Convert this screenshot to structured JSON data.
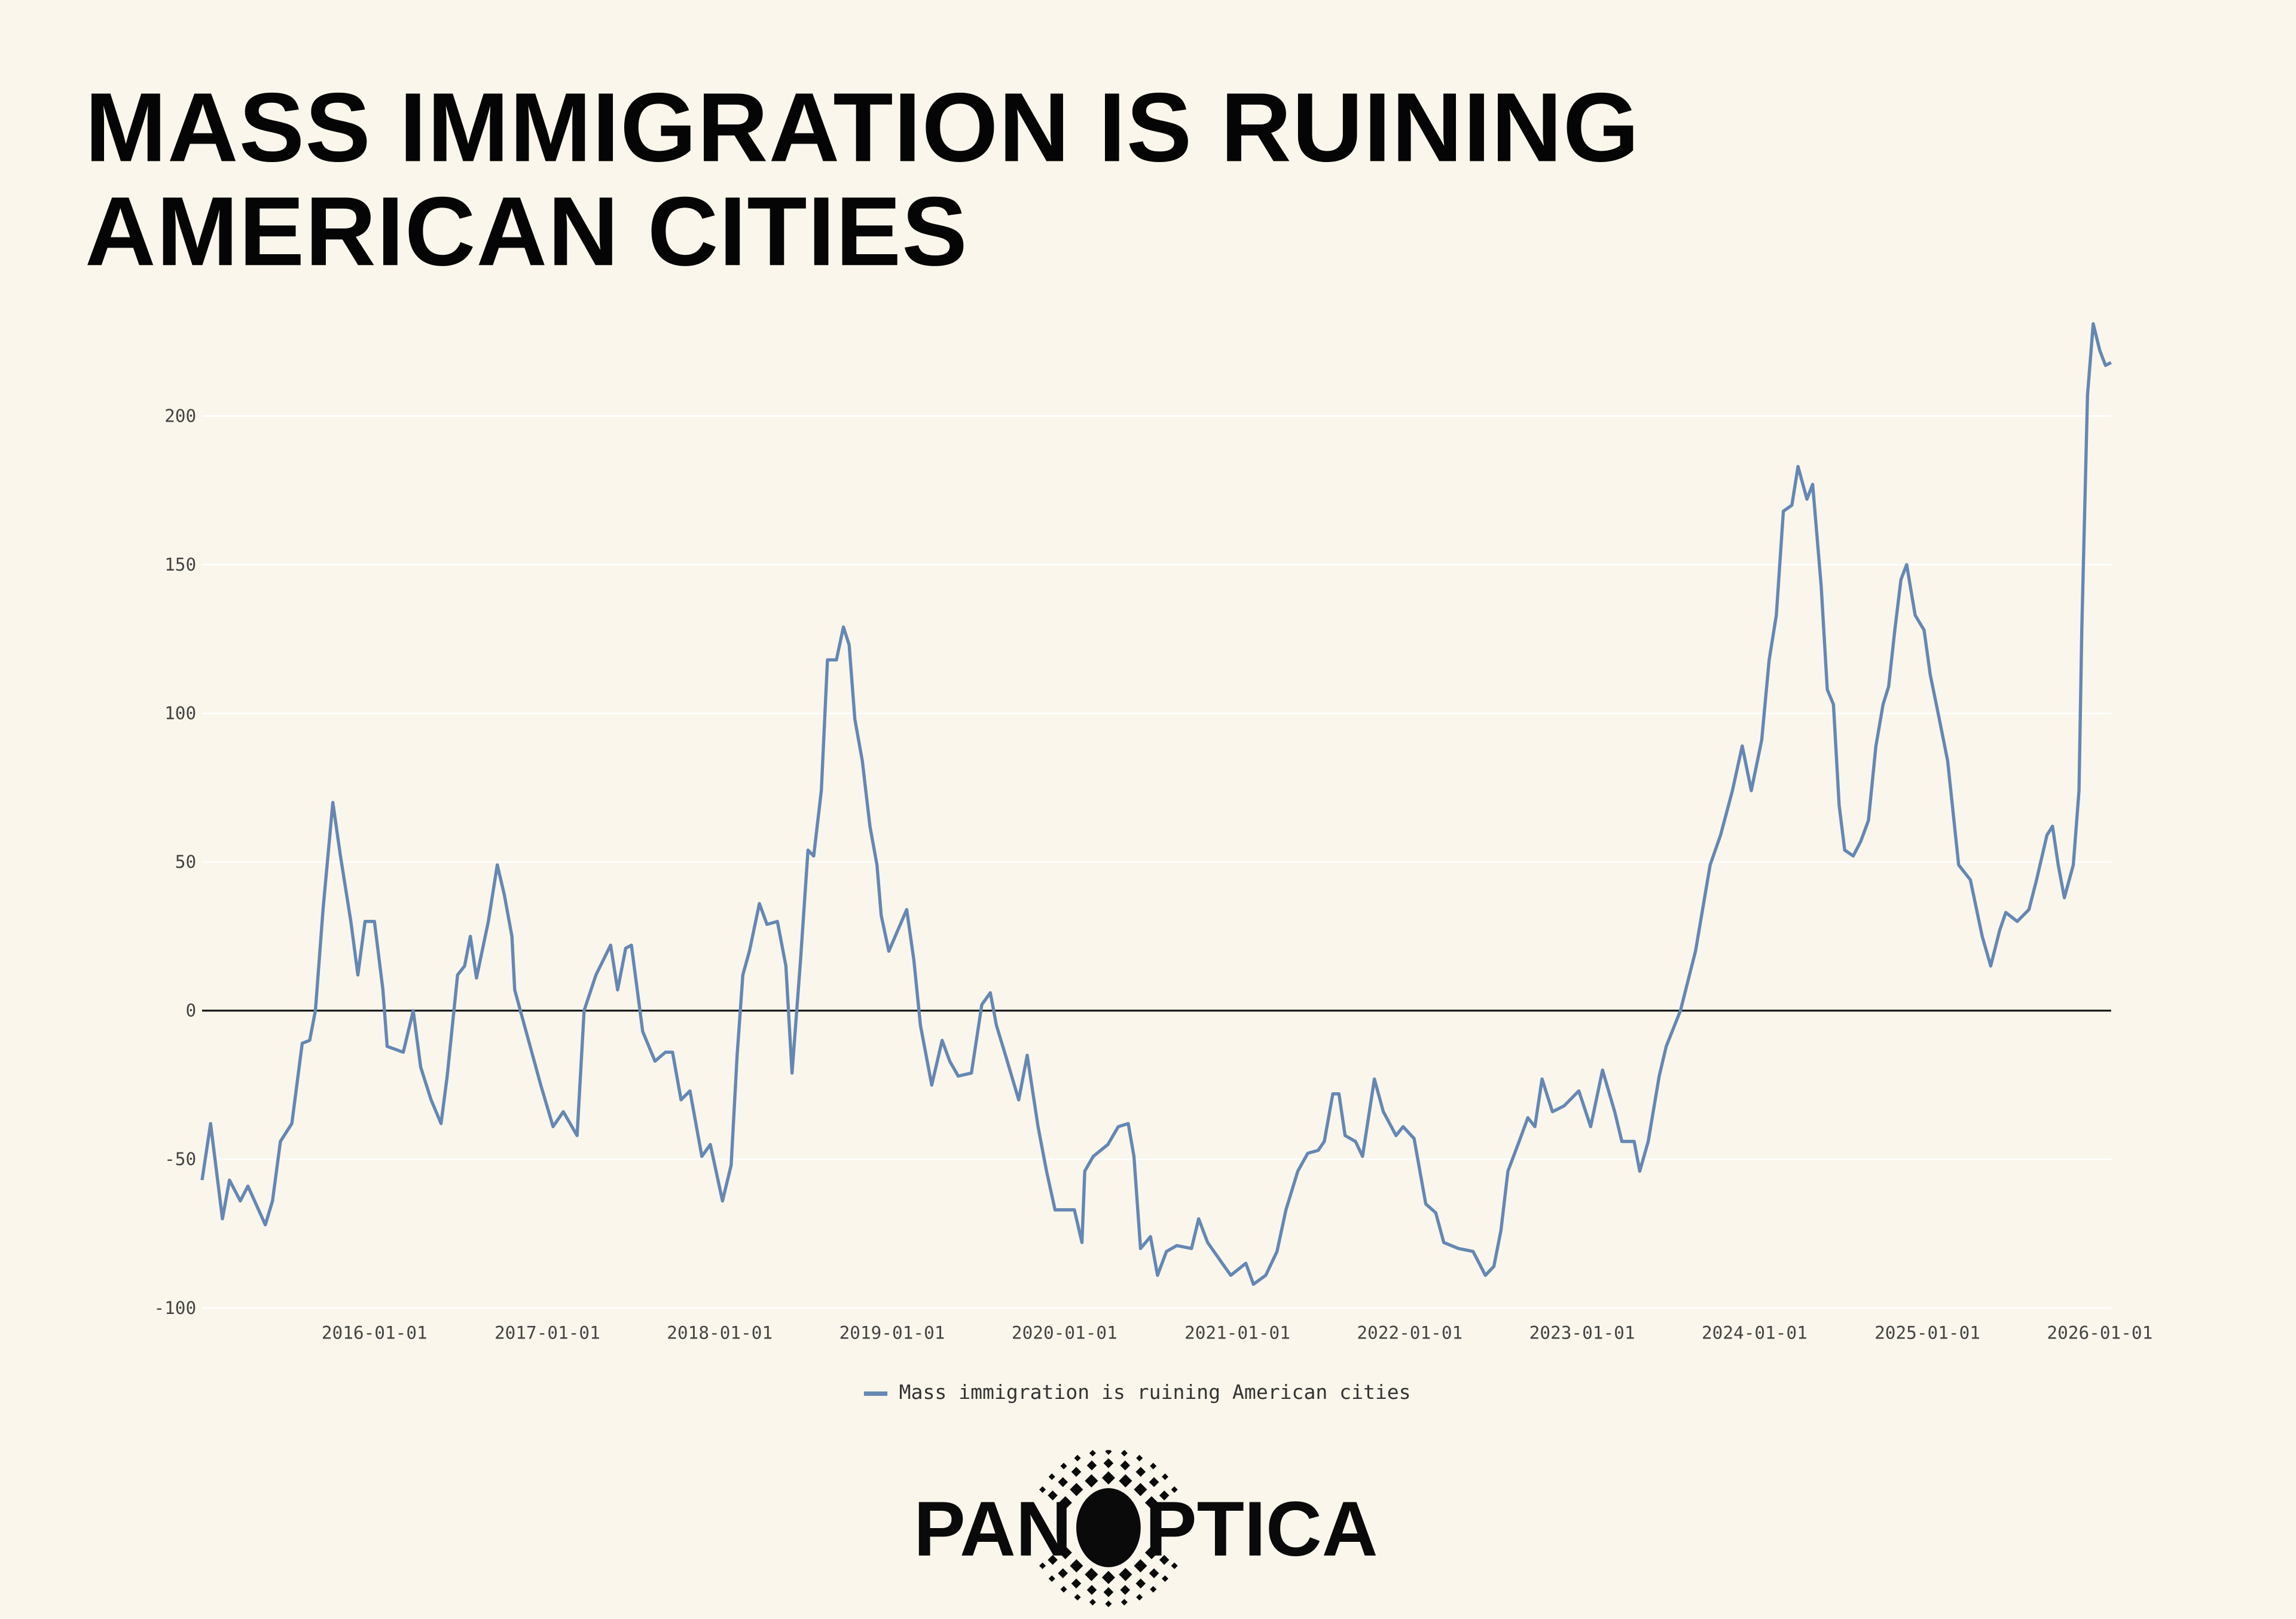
{
  "title": "MASS IMMIGRATION IS RUINING AMERICAN CITIES",
  "logo": {
    "text": "PANOPTICA"
  },
  "colors": {
    "background": "#faf6ec",
    "series": "#6587b3",
    "zero_line": "#111111",
    "grid": "#ffffff"
  },
  "chart_data": {
    "type": "line",
    "title": "MASS IMMIGRATION IS RUINING AMERICAN CITIES",
    "xlabel": "",
    "ylabel": "",
    "ylim": [
      -100,
      240
    ],
    "xlim": [
      "2015-01-01",
      "2026-01-25"
    ],
    "grid": true,
    "legend_position": "bottom",
    "y_ticks": [
      "200",
      "150",
      "100",
      "50",
      "0",
      "-50",
      "-100"
    ],
    "y_tick_values": [
      200,
      150,
      100,
      50,
      0,
      -50,
      -100
    ],
    "x_ticks": [
      "2016-01-01",
      "2017-01-01",
      "2018-01-01",
      "2019-01-01",
      "2020-01-01",
      "2021-01-01",
      "2022-01-01",
      "2023-01-01",
      "2024-01-01",
      "2025-01-01",
      "2026-01-01"
    ],
    "series": [
      {
        "name": "Mass immigration is ruining American cities",
        "color": "#6587b3",
        "points": [
          [
            "2015-01-01",
            -57
          ],
          [
            "2015-01-19",
            -38
          ],
          [
            "2015-02-13",
            -70
          ],
          [
            "2015-02-28",
            -57
          ],
          [
            "2015-03-23",
            -64
          ],
          [
            "2015-04-08",
            -59
          ],
          [
            "2015-05-15",
            -72
          ],
          [
            "2015-05-30",
            -64
          ],
          [
            "2015-06-16",
            -44
          ],
          [
            "2015-07-10",
            -38
          ],
          [
            "2015-08-01",
            -11
          ],
          [
            "2015-08-17",
            -10
          ],
          [
            "2015-08-29",
            0
          ],
          [
            "2015-09-14",
            34
          ],
          [
            "2015-10-05",
            70
          ],
          [
            "2015-10-21",
            52
          ],
          [
            "2015-11-12",
            30
          ],
          [
            "2015-11-27",
            12
          ],
          [
            "2015-12-12",
            30
          ],
          [
            "2016-01-01",
            30
          ],
          [
            "2016-01-19",
            7
          ],
          [
            "2016-01-28",
            -12
          ],
          [
            "2016-03-02",
            -14
          ],
          [
            "2016-03-23",
            0
          ],
          [
            "2016-04-08",
            -19
          ],
          [
            "2016-04-30",
            -30
          ],
          [
            "2016-05-21",
            -38
          ],
          [
            "2016-06-03",
            -22
          ],
          [
            "2016-06-25",
            12
          ],
          [
            "2016-07-10",
            15
          ],
          [
            "2016-07-22",
            25
          ],
          [
            "2016-08-04",
            11
          ],
          [
            "2016-08-29",
            30
          ],
          [
            "2016-09-17",
            49
          ],
          [
            "2016-10-02",
            39
          ],
          [
            "2016-10-18",
            25
          ],
          [
            "2016-10-24",
            7
          ],
          [
            "2016-11-24",
            -11
          ],
          [
            "2016-12-18",
            -25
          ],
          [
            "2017-01-13",
            -39
          ],
          [
            "2017-02-04",
            -34
          ],
          [
            "2017-03-05",
            -42
          ],
          [
            "2017-03-20",
            0
          ],
          [
            "2017-04-14",
            12
          ],
          [
            "2017-05-15",
            22
          ],
          [
            "2017-05-30",
            7
          ],
          [
            "2017-06-16",
            21
          ],
          [
            "2017-06-28",
            22
          ],
          [
            "2017-07-22",
            -7
          ],
          [
            "2017-08-17",
            -17
          ],
          [
            "2017-09-08",
            -14
          ],
          [
            "2017-09-23",
            -14
          ],
          [
            "2017-10-11",
            -30
          ],
          [
            "2017-10-30",
            -27
          ],
          [
            "2017-11-24",
            -49
          ],
          [
            "2017-12-12",
            -45
          ],
          [
            "2018-01-07",
            -64
          ],
          [
            "2018-01-25",
            -52
          ],
          [
            "2018-02-07",
            -15
          ],
          [
            "2018-02-19",
            12
          ],
          [
            "2018-03-05",
            20
          ],
          [
            "2018-03-26",
            36
          ],
          [
            "2018-04-11",
            29
          ],
          [
            "2018-05-03",
            30
          ],
          [
            "2018-05-21",
            15
          ],
          [
            "2018-06-03",
            -21
          ],
          [
            "2018-06-21",
            17
          ],
          [
            "2018-07-07",
            54
          ],
          [
            "2018-07-19",
            52
          ],
          [
            "2018-08-04",
            74
          ],
          [
            "2018-08-17",
            118
          ],
          [
            "2018-09-05",
            118
          ],
          [
            "2018-09-20",
            129
          ],
          [
            "2018-10-02",
            123
          ],
          [
            "2018-10-14",
            98
          ],
          [
            "2018-10-30",
            84
          ],
          [
            "2018-11-15",
            62
          ],
          [
            "2018-11-30",
            49
          ],
          [
            "2018-12-09",
            32
          ],
          [
            "2018-12-25",
            20
          ],
          [
            "2019-01-13",
            27
          ],
          [
            "2019-02-01",
            34
          ],
          [
            "2019-02-16",
            17
          ],
          [
            "2019-03-02",
            -5
          ],
          [
            "2019-03-26",
            -25
          ],
          [
            "2019-04-17",
            -10
          ],
          [
            "2019-05-03",
            -17
          ],
          [
            "2019-05-21",
            -22
          ],
          [
            "2019-06-18",
            -21
          ],
          [
            "2019-07-10",
            2
          ],
          [
            "2019-07-28",
            6
          ],
          [
            "2019-08-10",
            -5
          ],
          [
            "2019-08-29",
            -15
          ],
          [
            "2019-09-26",
            -30
          ],
          [
            "2019-10-14",
            -15
          ],
          [
            "2019-11-06",
            -39
          ],
          [
            "2019-11-24",
            -54
          ],
          [
            "2019-12-12",
            -67
          ],
          [
            "2020-01-22",
            -67
          ],
          [
            "2020-02-07",
            -78
          ],
          [
            "2020-02-13",
            -54
          ],
          [
            "2020-03-02",
            -49
          ],
          [
            "2020-04-02",
            -45
          ],
          [
            "2020-04-24",
            -39
          ],
          [
            "2020-05-15",
            -38
          ],
          [
            "2020-05-27",
            -49
          ],
          [
            "2020-06-10",
            -80
          ],
          [
            "2020-07-01",
            -76
          ],
          [
            "2020-07-16",
            -89
          ],
          [
            "2020-08-04",
            -81
          ],
          [
            "2020-08-26",
            -79
          ],
          [
            "2020-09-26",
            -80
          ],
          [
            "2020-10-11",
            -70
          ],
          [
            "2020-10-30",
            -78
          ],
          [
            "2020-11-30",
            -85
          ],
          [
            "2020-12-18",
            -89
          ],
          [
            "2021-01-19",
            -85
          ],
          [
            "2021-02-04",
            -92
          ],
          [
            "2021-03-02",
            -89
          ],
          [
            "2021-03-26",
            -81
          ],
          [
            "2021-04-14",
            -67
          ],
          [
            "2021-05-09",
            -54
          ],
          [
            "2021-05-30",
            -48
          ],
          [
            "2021-06-21",
            -47
          ],
          [
            "2021-07-04",
            -44
          ],
          [
            "2021-07-22",
            -28
          ],
          [
            "2021-08-04",
            -28
          ],
          [
            "2021-08-17",
            -42
          ],
          [
            "2021-09-08",
            -44
          ],
          [
            "2021-09-23",
            -49
          ],
          [
            "2021-10-18",
            -23
          ],
          [
            "2021-11-06",
            -34
          ],
          [
            "2021-12-03",
            -42
          ],
          [
            "2021-12-18",
            -39
          ],
          [
            "2022-01-10",
            -43
          ],
          [
            "2022-02-04",
            -65
          ],
          [
            "2022-02-25",
            -68
          ],
          [
            "2022-03-14",
            -78
          ],
          [
            "2022-04-14",
            -80
          ],
          [
            "2022-05-15",
            -81
          ],
          [
            "2022-06-10",
            -89
          ],
          [
            "2022-06-28",
            -86
          ],
          [
            "2022-07-13",
            -74
          ],
          [
            "2022-07-28",
            -54
          ],
          [
            "2022-08-23",
            -43
          ],
          [
            "2022-09-08",
            -36
          ],
          [
            "2022-09-23",
            -39
          ],
          [
            "2022-10-08",
            -23
          ],
          [
            "2022-10-30",
            -34
          ],
          [
            "2022-11-24",
            -32
          ],
          [
            "2022-12-25",
            -27
          ],
          [
            "2023-01-19",
            -39
          ],
          [
            "2023-02-13",
            -20
          ],
          [
            "2023-03-11",
            -34
          ],
          [
            "2023-03-26",
            -44
          ],
          [
            "2023-04-21",
            -44
          ],
          [
            "2023-05-03",
            -54
          ],
          [
            "2023-05-21",
            -44
          ],
          [
            "2023-06-13",
            -22
          ],
          [
            "2023-06-28",
            -12
          ],
          [
            "2023-07-28",
            0
          ],
          [
            "2023-08-29",
            20
          ],
          [
            "2023-09-29",
            49
          ],
          [
            "2023-10-21",
            59
          ],
          [
            "2023-11-15",
            74
          ],
          [
            "2023-12-06",
            89
          ],
          [
            "2023-12-25",
            74
          ],
          [
            "2024-01-16",
            91
          ],
          [
            "2024-02-01",
            118
          ],
          [
            "2024-02-16",
            133
          ],
          [
            "2024-03-02",
            168
          ],
          [
            "2024-03-20",
            170
          ],
          [
            "2024-04-02",
            183
          ],
          [
            "2024-04-21",
            172
          ],
          [
            "2024-05-03",
            177
          ],
          [
            "2024-05-21",
            143
          ],
          [
            "2024-06-03",
            108
          ],
          [
            "2024-06-16",
            103
          ],
          [
            "2024-06-28",
            69
          ],
          [
            "2024-07-10",
            54
          ],
          [
            "2024-07-28",
            52
          ],
          [
            "2024-08-13",
            57
          ],
          [
            "2024-08-29",
            64
          ],
          [
            "2024-09-14",
            89
          ],
          [
            "2024-09-29",
            103
          ],
          [
            "2024-10-11",
            109
          ],
          [
            "2024-10-24",
            128
          ],
          [
            "2024-11-06",
            145
          ],
          [
            "2024-11-18",
            150
          ],
          [
            "2024-12-06",
            133
          ],
          [
            "2024-12-25",
            128
          ],
          [
            "2025-01-07",
            113
          ],
          [
            "2025-01-25",
            99
          ],
          [
            "2025-02-13",
            84
          ],
          [
            "2025-03-08",
            49
          ],
          [
            "2025-04-02",
            44
          ],
          [
            "2025-04-27",
            25
          ],
          [
            "2025-05-15",
            15
          ],
          [
            "2025-06-03",
            27
          ],
          [
            "2025-06-16",
            33
          ],
          [
            "2025-07-10",
            30
          ],
          [
            "2025-08-04",
            34
          ],
          [
            "2025-08-20",
            44
          ],
          [
            "2025-09-11",
            59
          ],
          [
            "2025-09-23",
            62
          ],
          [
            "2025-10-05",
            49
          ],
          [
            "2025-10-18",
            38
          ],
          [
            "2025-11-06",
            49
          ],
          [
            "2025-11-18",
            74
          ],
          [
            "2025-11-24",
            128
          ],
          [
            "2025-12-06",
            207
          ],
          [
            "2025-12-18",
            231
          ],
          [
            "2026-01-01",
            222
          ],
          [
            "2026-01-13",
            217
          ],
          [
            "2026-01-25",
            218
          ]
        ]
      }
    ]
  }
}
